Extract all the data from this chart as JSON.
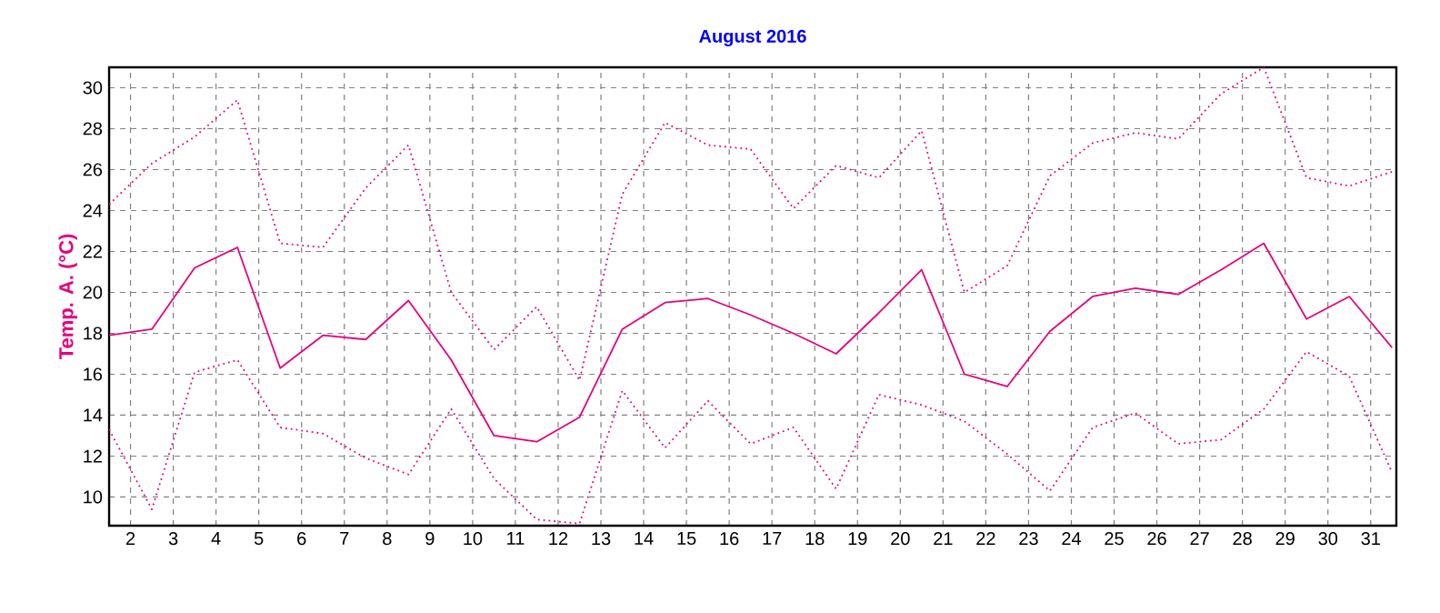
{
  "chart_data": {
    "type": "line",
    "title": "August 2016",
    "ylabel": "Temp. A. (°C)",
    "x": [
      1.5,
      2.5,
      3.5,
      4.5,
      5.5,
      6.5,
      7.5,
      8.5,
      9.5,
      10.5,
      11.5,
      12.5,
      13.5,
      14.5,
      15.5,
      16.5,
      17.5,
      18.5,
      19.5,
      20.5,
      21.5,
      22.5,
      23.5,
      24.5,
      25.5,
      26.5,
      27.5,
      28.5,
      29.5,
      30.5,
      31.5
    ],
    "series": [
      {
        "color": "#e6007e",
        "line_style": "dotted",
        "values": [
          24.3,
          26.3,
          27.6,
          29.4,
          22.4,
          22.2,
          25.1,
          27.2,
          20.0,
          17.2,
          19.3,
          15.7,
          24.8,
          28.3,
          27.2,
          27.0,
          24.1,
          26.2,
          25.6,
          27.9,
          20.0,
          21.3,
          25.7,
          27.3,
          27.8,
          27.5,
          29.7,
          31.0,
          25.6,
          25.2,
          25.9
        ]
      },
      {
        "color": "#e6007e",
        "line_style": "solid",
        "values": [
          17.9,
          18.2,
          21.2,
          22.2,
          16.3,
          17.9,
          17.7,
          19.6,
          16.7,
          13.0,
          12.7,
          13.9,
          18.2,
          19.5,
          19.7,
          18.9,
          18.0,
          17.0,
          19.0,
          21.1,
          16.0,
          15.4,
          18.1,
          19.8,
          20.2,
          19.9,
          21.1,
          22.4,
          18.7,
          19.8,
          17.3
        ]
      },
      {
        "color": "#e6007e",
        "line_style": "dotted",
        "values": [
          13.3,
          9.4,
          16.1,
          16.7,
          13.4,
          13.1,
          11.9,
          11.1,
          14.3,
          10.9,
          8.9,
          8.7,
          15.2,
          12.4,
          14.7,
          12.6,
          13.4,
          10.4,
          15.0,
          14.5,
          13.7,
          12.1,
          10.3,
          13.4,
          14.1,
          12.6,
          12.8,
          14.3,
          17.1,
          15.9,
          11.2
        ]
      }
    ],
    "xlim": [
      1.5,
      31.6
    ],
    "xticks": [
      2,
      3,
      4,
      5,
      6,
      7,
      8,
      9,
      10,
      11,
      12,
      13,
      14,
      15,
      16,
      17,
      18,
      19,
      20,
      21,
      22,
      23,
      24,
      25,
      26,
      27,
      28,
      29,
      30,
      31
    ],
    "ylim": [
      8.6,
      31
    ],
    "yticks": [
      10,
      12,
      14,
      16,
      18,
      20,
      22,
      24,
      26,
      28,
      30
    ],
    "grid": true,
    "marker": "none"
  }
}
